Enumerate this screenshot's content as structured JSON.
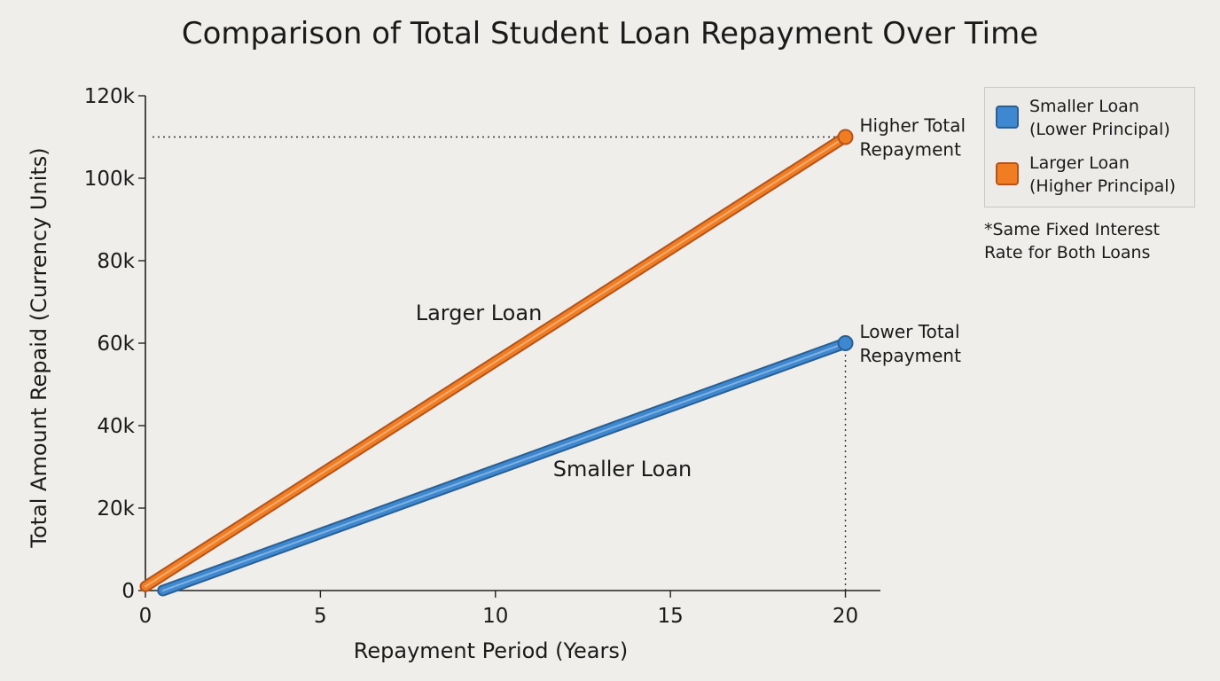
{
  "chart_data": {
    "type": "line",
    "title": "Comparison of Total Student Loan Repayment Over Time",
    "xlabel": "Repayment Period (Years)",
    "ylabel": "Total Amount Repaid (Currency Units)",
    "xlim": [
      0,
      21
    ],
    "ylim": [
      0,
      120000
    ],
    "x_ticks": [
      0,
      5,
      10,
      15,
      20
    ],
    "x_tick_labels": [
      "0",
      "5",
      "10",
      "15",
      "20"
    ],
    "y_ticks": [
      0,
      20000,
      40000,
      60000,
      80000,
      100000,
      120000
    ],
    "y_tick_labels": [
      "0",
      "20k",
      "40k",
      "60k",
      "80k",
      "100k",
      "120k"
    ],
    "grid": false,
    "legend_position": "top-right, outside plot",
    "series": [
      {
        "name": "Smaller Loan (Lower Principal)",
        "legend_lines": [
          "Smaller Loan",
          "(Lower Principal)"
        ],
        "inline_label": "Smaller Loan",
        "color": "#3d88d0",
        "edge_color": "#2a5f93",
        "x": [
          0.5,
          20
        ],
        "y": [
          0,
          60000
        ],
        "end_annotation_lines": [
          "Lower Total",
          "Repayment"
        ]
      },
      {
        "name": "Larger Loan (Higher Principal)",
        "legend_lines": [
          "Larger Loan",
          "(Higher Principal)"
        ],
        "inline_label": "Larger Loan",
        "color": "#f07d22",
        "edge_color": "#b5531a",
        "x": [
          0,
          20
        ],
        "y": [
          1000,
          110000
        ],
        "end_annotation_lines": [
          "Higher Total",
          "Repayment"
        ]
      }
    ],
    "reference_lines": [
      {
        "orientation": "horizontal",
        "y": 110000,
        "x_from": 0,
        "x_to": 20,
        "style": "dotted"
      },
      {
        "orientation": "vertical",
        "x": 20,
        "y_from": 0,
        "y_to": 60000,
        "style": "dotted"
      }
    ],
    "note_lines": [
      "*Same Fixed Interest",
      "Rate for Both Loans"
    ]
  }
}
